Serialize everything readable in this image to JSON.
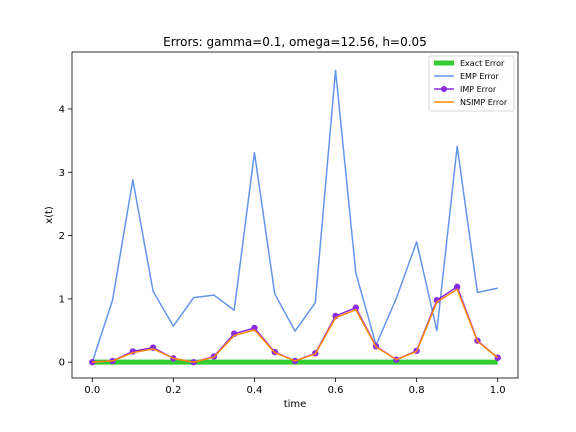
{
  "chart_data": {
    "type": "line",
    "title": "Errors: gamma=0.1, omega=12.56, h=0.05",
    "xlabel": "time",
    "ylabel": "x(t)",
    "xlim": [
      -0.05,
      1.05
    ],
    "ylim": [
      -0.25,
      4.9
    ],
    "xticks": [
      0.0,
      0.2,
      0.4,
      0.6,
      0.8,
      1.0
    ],
    "xtick_labels": [
      "0.0",
      "0.2",
      "0.4",
      "0.6",
      "0.8",
      "1.0"
    ],
    "yticks": [
      0,
      1,
      2,
      3,
      4
    ],
    "ytick_labels": [
      "0",
      "1",
      "2",
      "3",
      "4"
    ],
    "grid": false,
    "legend_position": "top-right",
    "x": [
      0.0,
      0.05,
      0.1,
      0.15,
      0.2,
      0.25,
      0.3,
      0.35,
      0.4,
      0.45,
      0.5,
      0.55,
      0.6,
      0.65,
      0.7,
      0.75,
      0.8,
      0.85,
      0.9,
      0.95,
      1.0
    ],
    "series": [
      {
        "name": "Exact Error",
        "color": "#32cd32",
        "style": "thick-line",
        "values": [
          0,
          0,
          0,
          0,
          0,
          0,
          0,
          0,
          0,
          0,
          0,
          0,
          0,
          0,
          0,
          0,
          0,
          0,
          0,
          0,
          0
        ]
      },
      {
        "name": "EMP Error",
        "color": "#6495ed",
        "style": "line",
        "values": [
          0.0,
          0.98,
          2.88,
          1.12,
          0.57,
          1.02,
          1.06,
          0.82,
          3.31,
          1.08,
          0.49,
          0.94,
          4.61,
          1.41,
          0.27,
          1.01,
          1.9,
          0.5,
          3.41,
          1.1,
          1.17
        ]
      },
      {
        "name": "IMP Error",
        "color": "#8a2be2",
        "style": "line-markers",
        "values": [
          0.0,
          0.02,
          0.17,
          0.23,
          0.06,
          0.0,
          0.09,
          0.45,
          0.54,
          0.16,
          0.02,
          0.14,
          0.73,
          0.86,
          0.25,
          0.04,
          0.18,
          0.98,
          1.19,
          0.34,
          0.07
        ]
      },
      {
        "name": "NSIMP Error",
        "color": "#ff8c00",
        "style": "line",
        "values": [
          0.0,
          0.02,
          0.15,
          0.21,
          0.06,
          0.0,
          0.08,
          0.42,
          0.51,
          0.15,
          0.02,
          0.13,
          0.7,
          0.83,
          0.24,
          0.04,
          0.17,
          0.95,
          1.15,
          0.33,
          0.07
        ]
      }
    ]
  }
}
